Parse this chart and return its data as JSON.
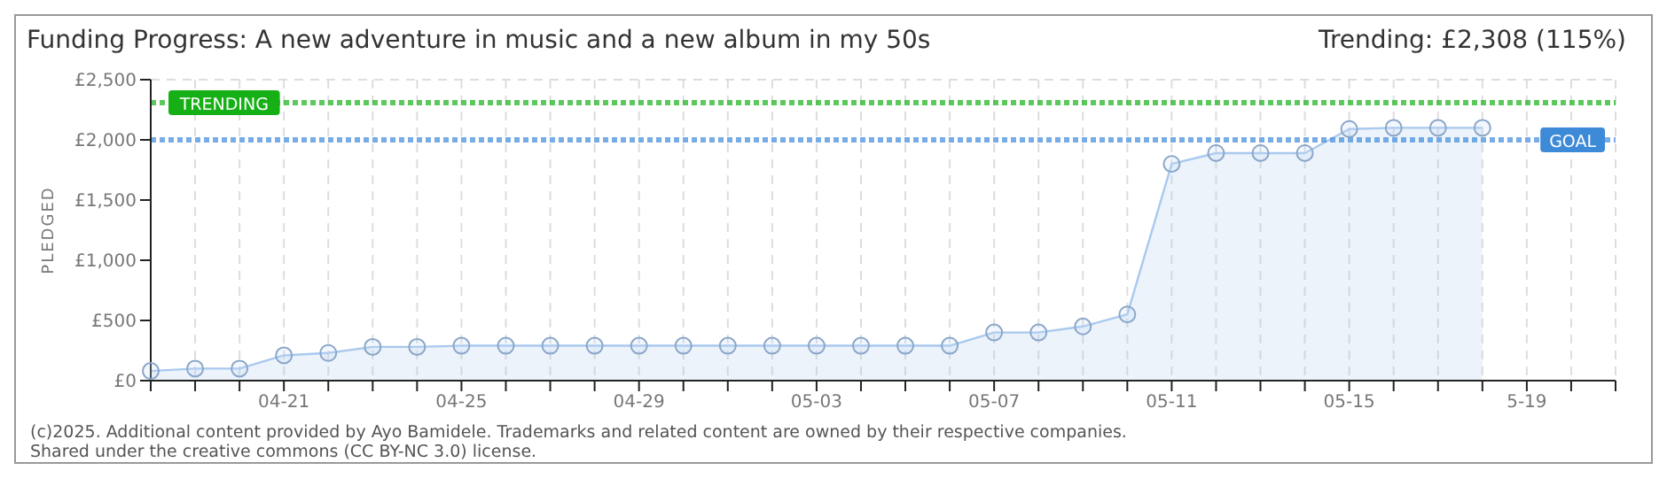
{
  "chart_data": {
    "type": "area",
    "title": "Funding Progress: A new adventure in music and a new album in my 50s",
    "subtitle": "Trending: £2,308 (115%)",
    "ylabel": "PLEDGED",
    "categories": [
      null,
      null,
      null,
      "04-21",
      null,
      null,
      null,
      "04-25",
      null,
      null,
      null,
      "04-29",
      null,
      null,
      null,
      "05-03",
      null,
      null,
      null,
      "05-07",
      null,
      null,
      null,
      "05-11",
      null,
      null,
      null,
      "05-15",
      null,
      null,
      null,
      "5-19",
      null,
      null
    ],
    "series": [
      {
        "color": "#a9c9ee",
        "values": [
          80,
          100,
          100,
          210,
          230,
          280,
          280,
          290,
          290,
          290,
          290,
          290,
          290,
          290,
          290,
          290,
          290,
          290,
          290,
          400,
          400,
          450,
          550,
          1800,
          1890,
          1890,
          1890,
          2090,
          2100,
          2100,
          2100,
          null,
          null,
          null
        ]
      }
    ],
    "ylim": [
      0,
      2500
    ],
    "yticks": [
      {
        "value": 0,
        "label": "£0"
      },
      {
        "value": 500,
        "label": "£500"
      },
      {
        "value": 1000,
        "label": "£1,000"
      },
      {
        "value": 1500,
        "label": "£1,500"
      },
      {
        "value": 2000,
        "label": "£2,000"
      },
      {
        "value": 2500,
        "label": "£2,500"
      }
    ],
    "ref_lines": [
      {
        "axis": "y",
        "value": 2308,
        "label": "TRENDING",
        "color": "#16b016",
        "line_style": "dotted"
      },
      {
        "axis": "y",
        "value": 2000,
        "label": "GOAL",
        "color": "#3d8ad8",
        "line_style": "dotted"
      }
    ],
    "grid": true,
    "marker": "circle",
    "legend": false,
    "annotations": [
      "(c)2025. Additional content provided by Ayo Bamidele. Trademarks and related content are owned by their respective companies.",
      "Shared under the creative commons (CC BY-NC 3.0) license."
    ]
  }
}
